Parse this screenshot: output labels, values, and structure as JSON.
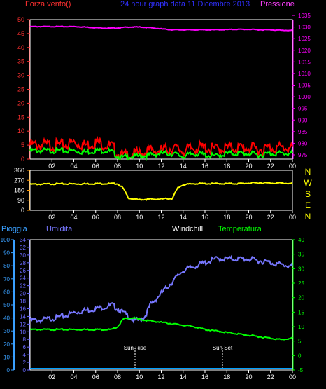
{
  "header": {
    "left": "Forza vento()",
    "center": "24 hour graph data  11 Dicembre 2013",
    "right": "Pressione"
  },
  "colors": {
    "wind_gust": "#ff0000",
    "wind_avg": "#00ff00",
    "pressure": "#ff00ff",
    "direction": "#ffff00",
    "humidity": "#7777ff",
    "temperature": "#00ff00",
    "rain": "#00a0ff",
    "windchill": "#ffffff",
    "left_axis_red": "#ff3030",
    "axis_purple": "#b040ff",
    "axis_green": "#00ff00",
    "axis_blue": "#6a6aff",
    "axis_rain": "#3aa0ff",
    "axis_orange": "#ff9900"
  },
  "x_ticks": [
    "02",
    "04",
    "06",
    "08",
    "10",
    "12",
    "14",
    "16",
    "18",
    "20",
    "22",
    "00"
  ],
  "panel1": {
    "left_ticks": [
      "0",
      "5",
      "10",
      "15",
      "20",
      "25",
      "30",
      "35",
      "40",
      "45",
      "50"
    ],
    "right_ticks": [
      "975",
      "980",
      "985",
      "990",
      "995",
      "1000",
      "1005",
      "1010",
      "1015",
      "1020",
      "1025",
      "1030",
      "1035"
    ]
  },
  "panel2": {
    "left_ticks": [
      "0",
      "90",
      "180",
      "270",
      "360"
    ],
    "compass": [
      "N",
      "W",
      "S",
      "E",
      "N"
    ]
  },
  "panel3": {
    "labels": {
      "rain": "Pioggia",
      "humidity": "Umidita",
      "windchill": "Windchill",
      "temperature": "Temperatura"
    },
    "rain_ticks": [
      "0",
      "10",
      "20",
      "30",
      "40",
      "50",
      "60",
      "70",
      "80",
      "90",
      "100"
    ],
    "humidity_ticks": [
      "0",
      "2",
      "4",
      "6",
      "8",
      "10",
      "12",
      "14",
      "16",
      "18",
      "20",
      "22",
      "24",
      "26",
      "28",
      "30",
      "32",
      "34"
    ],
    "temp_ticks": [
      "-5",
      "0",
      "5",
      "10",
      "15",
      "20",
      "25",
      "30",
      "35",
      "40"
    ],
    "sunrise": "Sun Rise",
    "sunset": "Sun Set"
  },
  "chart_data": [
    {
      "type": "line",
      "xlabel": "",
      "ylabel": "Forza vento()",
      "x": [
        0,
        1,
        2,
        3,
        4,
        5,
        6,
        7,
        7.5,
        8,
        8.5,
        9,
        10,
        11,
        12,
        13,
        14,
        15,
        16,
        17,
        18,
        19,
        20,
        21,
        22,
        23,
        24
      ],
      "ylim": [
        0,
        50
      ],
      "y2lim": [
        975,
        1035
      ],
      "series": [
        {
          "name": "Forza vento()",
          "values": [
            5,
            5,
            5,
            5,
            6,
            5,
            6,
            5,
            4.5,
            2,
            1,
            1.5,
            2,
            3,
            3,
            4,
            3,
            4,
            4,
            3.5,
            4,
            4,
            4,
            3.5,
            4,
            4,
            4
          ]
        },
        {
          "name": "",
          "values": [
            3,
            3,
            3,
            3,
            3,
            2.5,
            3,
            3,
            2.5,
            1,
            0.5,
            1,
            1,
            1.5,
            2,
            2,
            1,
            2,
            1.5,
            1,
            2,
            2,
            2,
            1.5,
            2,
            2,
            2
          ]
        },
        {
          "name": "Pressione",
          "axis": "right",
          "values": [
            1032,
            1032,
            1032,
            1032,
            1032,
            1031.8,
            1031.5,
            1031.3,
            1031.3,
            1031.4,
            1031.6,
            1031.8,
            1031.8,
            1031.5,
            1031,
            1030.6,
            1030.6,
            1030.6,
            1030.6,
            1030.6,
            1030.7,
            1030.8,
            1030.8,
            1030.6,
            1030.6,
            1030.4,
            1030.3
          ]
        }
      ]
    },
    {
      "type": "line",
      "xlabel": "",
      "ylabel": "",
      "x": [
        0,
        1,
        2,
        3,
        4,
        5,
        6,
        7,
        7.5,
        8,
        8.5,
        9,
        9.5,
        10,
        11,
        12,
        12.5,
        13,
        13.5,
        14,
        15,
        16,
        17,
        18,
        19,
        20,
        21,
        22,
        23,
        24
      ],
      "ylim": [
        0,
        360
      ],
      "series": [
        {
          "name": "",
          "values": [
            235,
            235,
            238,
            238,
            238,
            238,
            240,
            240,
            240,
            240,
            200,
            110,
            100,
            95,
            100,
            100,
            105,
            105,
            200,
            230,
            240,
            240,
            240,
            240,
            240,
            245,
            248,
            245,
            245,
            240
          ]
        }
      ]
    },
    {
      "type": "line",
      "xlabel": "",
      "ylabel": "",
      "x": [
        0,
        1,
        2,
        3,
        4,
        5,
        6,
        7,
        7.5,
        8,
        8.5,
        9,
        9.5,
        10,
        10.5,
        11,
        12,
        13,
        14,
        15,
        16,
        17,
        18,
        19,
        20,
        21,
        22,
        23,
        24
      ],
      "series": [
        {
          "name": "Umidita",
          "axis": "humidity",
          "ylim": [
            0,
            34
          ],
          "values": [
            13,
            13,
            13.5,
            14,
            15,
            15.5,
            16,
            16.5,
            17,
            16,
            15,
            14,
            13,
            13,
            14,
            17,
            20,
            23,
            26,
            27,
            28,
            29,
            29,
            29,
            29,
            28.5,
            28,
            27.5,
            27
          ]
        },
        {
          "name": "Temperatura",
          "axis": "temperature",
          "ylim": [
            -5,
            40
          ],
          "values": [
            9,
            9,
            9,
            9,
            9,
            9,
            9,
            9,
            9,
            10,
            12.5,
            13,
            13,
            12.5,
            12.2,
            12,
            11.5,
            11,
            10.5,
            10,
            9,
            8.5,
            8,
            7.5,
            7,
            6.5,
            6,
            5.5,
            6
          ]
        },
        {
          "name": "Pioggia",
          "axis": "rain",
          "ylim": [
            0,
            100
          ],
          "values": [
            0,
            0,
            0,
            0,
            0,
            0,
            0,
            0,
            0,
            0,
            0,
            0,
            0,
            0,
            0,
            0,
            0,
            0,
            0,
            0,
            0,
            0,
            0,
            0,
            0,
            0,
            0,
            0,
            0
          ]
        }
      ],
      "annotations": [
        "Sun Rise",
        "Sun Set"
      ]
    }
  ]
}
